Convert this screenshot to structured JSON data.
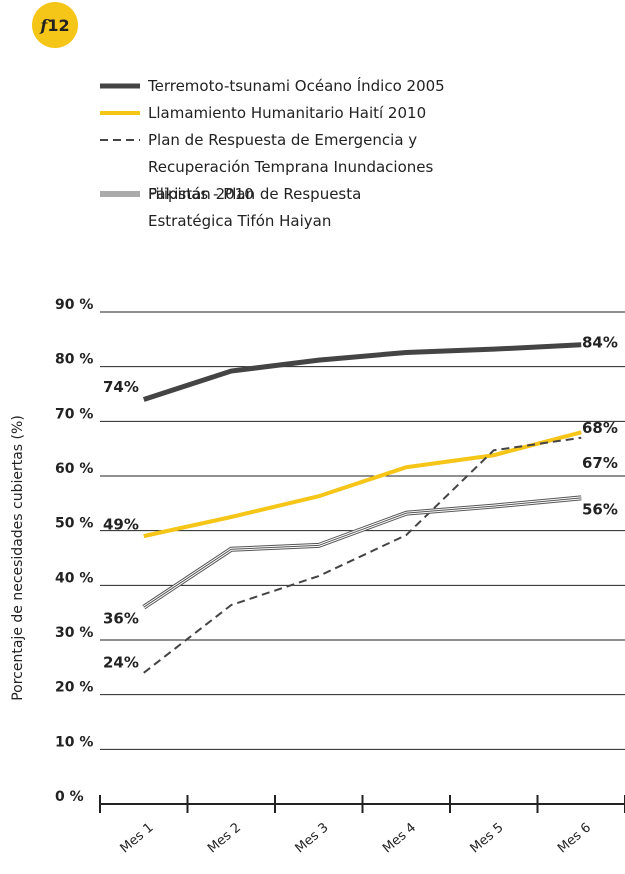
{
  "badge": {
    "letter": "f",
    "number": "12"
  },
  "chart_data": {
    "type": "line",
    "ylabel": "Porcentaje de necesidades cubiertas (%)",
    "categories": [
      "Mes 1",
      "Mes 2",
      "Mes 3",
      "Mes 4",
      "Mes 5",
      "Mes 6"
    ],
    "ylim": [
      0,
      90
    ],
    "yticks": [
      {
        "value": 0,
        "label": "0 %"
      },
      {
        "value": 10,
        "label": "10 %"
      },
      {
        "value": 20,
        "label": "20 %"
      },
      {
        "value": 30,
        "label": "30 %"
      },
      {
        "value": 40,
        "label": "40 %"
      },
      {
        "value": 50,
        "label": "50 %"
      },
      {
        "value": 60,
        "label": "60 %"
      },
      {
        "value": 70,
        "label": "70 %"
      },
      {
        "value": 80,
        "label": "80 %"
      },
      {
        "value": 90,
        "label": "90 %"
      }
    ],
    "grid": true,
    "series": [
      {
        "name": "Terremoto-tsunami Océano Índico 2005",
        "color": "#444444",
        "style": "thick",
        "values": [
          74,
          79.2,
          81.2,
          82.6,
          83.2,
          84
        ],
        "value_labels": [
          "74%",
          null,
          null,
          null,
          null,
          "84%"
        ]
      },
      {
        "name": "Llamamiento Humanitario Haití 2010",
        "color": "#f5c518",
        "style": "solid",
        "values": [
          49,
          52.5,
          56.3,
          61.6,
          63.8,
          68
        ],
        "value_labels": [
          "49%",
          null,
          null,
          null,
          null,
          "68%"
        ]
      },
      {
        "name": "Plan de Respuesta de Emergencia y Recuperación Temprana  Inundaciones Pakistán 2010",
        "color": "#444444",
        "style": "dashed",
        "values": [
          24,
          36.4,
          41.7,
          49.2,
          64.7,
          67
        ],
        "value_labels": [
          "24%",
          null,
          null,
          null,
          null,
          "67%"
        ]
      },
      {
        "name": "Filipinas - Plan de Respuesta Estratégica Tifón Haiyan",
        "color": "#555555",
        "style": "triple",
        "values": [
          36,
          46.6,
          47.3,
          53.2,
          54.5,
          56
        ],
        "value_labels": [
          "36%",
          null,
          null,
          null,
          null,
          "56%"
        ]
      }
    ]
  }
}
